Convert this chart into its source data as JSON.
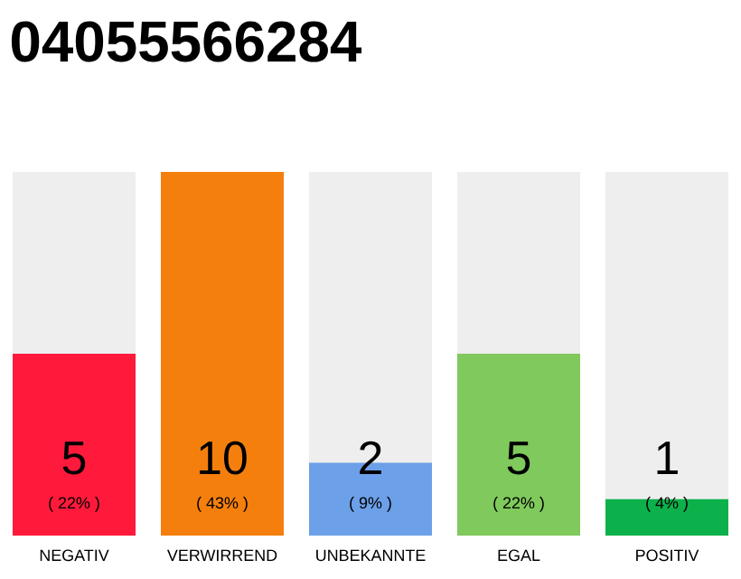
{
  "chart_data": {
    "type": "bar",
    "title": "04055566284",
    "categories": [
      "NEGATIV",
      "VERWIRREND",
      "UNBEKANNTE",
      "EGAL",
      "POSITIV"
    ],
    "values": [
      5,
      10,
      2,
      5,
      1
    ],
    "colors": [
      "#ff1a3c",
      "#f47f0d",
      "#6ca0e8",
      "#80c95c",
      "#0db14b"
    ],
    "ylim": [
      0,
      10
    ],
    "tick_labels": "x",
    "data_labels": true,
    "annotations": [
      "( 22% )",
      "( 43% )",
      "( 9% )",
      "( 22% )",
      "( 4% )"
    ]
  }
}
